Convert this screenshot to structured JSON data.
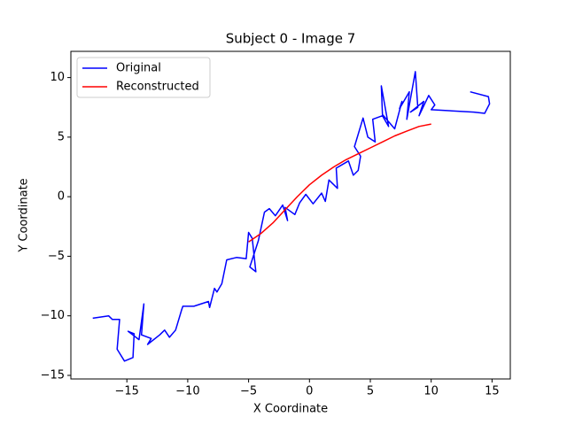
{
  "chart_data": {
    "type": "line",
    "title": "Subject 0 - Image 7",
    "x_label": "X Coordinate",
    "y_label": "Y Coordinate",
    "xlim": [
      -19.6,
      16.5
    ],
    "ylim": [
      -15.3,
      12.2
    ],
    "xticks": [
      {
        "value": -15,
        "label": "−15"
      },
      {
        "value": -10,
        "label": "−10"
      },
      {
        "value": -5,
        "label": "−5"
      },
      0,
      5,
      10,
      15
    ],
    "yticks": [
      {
        "value": -15,
        "label": "−15"
      },
      {
        "value": -10,
        "label": "−10"
      },
      {
        "value": -5,
        "label": "−5"
      },
      0,
      5,
      10
    ],
    "legend": "upper left",
    "series": [
      {
        "name": "Original",
        "color": "#0000ff",
        "x": [
          -17.8,
          -16.5,
          -16.2,
          -15.6,
          -15.8,
          -15.2,
          -14.5,
          -14.4,
          -14.9,
          -14.0,
          -13.6,
          -13.8,
          -13.0,
          -13.3,
          -12.3,
          -11.9,
          -11.5,
          -11.0,
          -10.5,
          -10.4,
          -9.5,
          -8.3,
          -8.2,
          -7.8,
          -7.6,
          -7.2,
          -6.8,
          -6.0,
          -5.2,
          -5.0,
          -4.7,
          -4.4,
          -4.9,
          -4.2,
          -3.7,
          -3.3,
          -2.8,
          -2.2,
          -1.8,
          -2.0,
          -1.2,
          -0.8,
          -0.3,
          0.3,
          1.0,
          1.3,
          1.6,
          2.3,
          2.2,
          3.2,
          3.6,
          4.0,
          4.2,
          3.7,
          4.4,
          4.8,
          5.4,
          5.2,
          6.0,
          6.5,
          5.9,
          6.0,
          7.0,
          7.6,
          7.4,
          8.2,
          8.0,
          8.7,
          8.9,
          8.3,
          9.4,
          9.0,
          9.8,
          10.3,
          10.0,
          13.5,
          14.4,
          14.8,
          14.7,
          13.2
        ],
        "values": [
          -10.2,
          -10.0,
          -10.3,
          -10.3,
          -12.8,
          -13.8,
          -13.5,
          -11.5,
          -11.3,
          -12.0,
          -9.0,
          -11.6,
          -11.9,
          -12.4,
          -11.6,
          -11.2,
          -11.8,
          -11.2,
          -9.5,
          -9.2,
          -9.2,
          -8.8,
          -9.3,
          -7.7,
          -8.0,
          -7.3,
          -5.3,
          -5.1,
          -5.2,
          -3.0,
          -3.5,
          -6.3,
          -5.9,
          -3.7,
          -1.3,
          -1.0,
          -1.6,
          -0.7,
          -2.0,
          -0.9,
          -1.5,
          -0.5,
          0.2,
          -0.6,
          0.3,
          -0.4,
          1.4,
          0.7,
          2.4,
          3.0,
          1.8,
          2.2,
          3.4,
          4.2,
          6.6,
          5.0,
          4.6,
          6.5,
          6.8,
          5.9,
          9.3,
          6.9,
          5.7,
          8.0,
          7.4,
          8.8,
          6.5,
          10.5,
          7.5,
          7.1,
          8.0,
          6.8,
          8.5,
          7.7,
          7.3,
          7.1,
          7.0,
          7.8,
          8.4,
          8.8
        ]
      },
      {
        "name": "Reconstructed",
        "color": "#ff0000",
        "x": [
          -5,
          -4,
          -3,
          -2,
          -1,
          0,
          1,
          2,
          3,
          4,
          5,
          6,
          7,
          8,
          9,
          10
        ],
        "values": [
          -3.8,
          -3.1,
          -2.2,
          -1.1,
          0.0,
          1.0,
          1.8,
          2.5,
          3.1,
          3.6,
          4.1,
          4.6,
          5.1,
          5.5,
          5.9,
          6.1
        ]
      }
    ]
  }
}
